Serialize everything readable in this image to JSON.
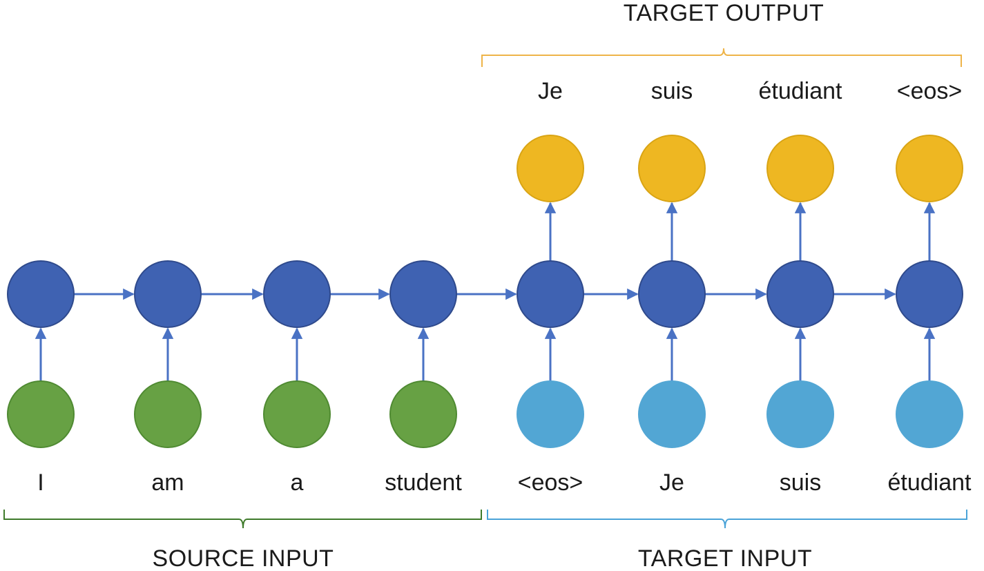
{
  "labels": {
    "target_output": "TARGET OUTPUT",
    "source_input": "SOURCE INPUT",
    "target_input": "TARGET INPUT"
  },
  "source_tokens": [
    "I",
    "am",
    "a",
    "student"
  ],
  "target_input_tokens": [
    "<eos>",
    "Je",
    "suis",
    "étudiant"
  ],
  "target_output_tokens": [
    "Je",
    "suis",
    "étudiant",
    "<eos>"
  ],
  "colors": {
    "hidden_node": "#3f62b2",
    "hidden_stroke": "#2f4a8c",
    "arrow": "#4a72c4",
    "source_node": "#67a144",
    "source_stroke": "#4f8a32",
    "target_input_node": "#52a6d4",
    "target_output_node": "#eeb722",
    "target_output_stroke": "#d9a414",
    "source_bracket": "#3e7a2a",
    "target_input_bracket": "#4aa3d8",
    "target_output_bracket": "#eeb448"
  }
}
